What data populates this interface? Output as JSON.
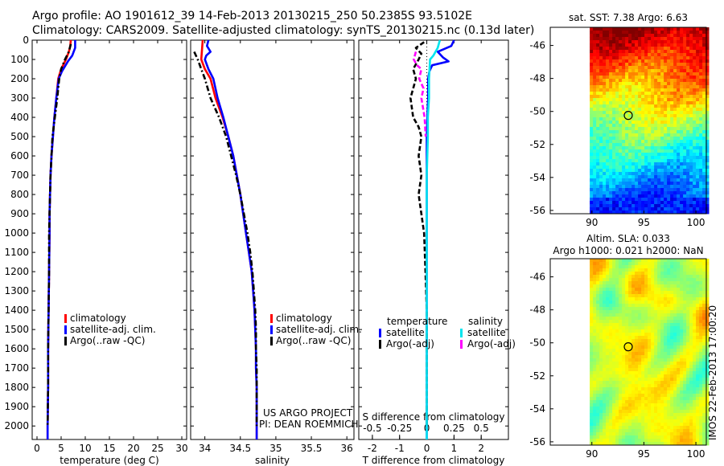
{
  "header": {
    "line1": "Argo profile: AO 1901612_39 14-Feb-2013 20130215_250 50.2385S 93.5102E",
    "line2": "Climatology: CARS2009. Satellite-adjusted climatology: synTS_20130215.nc (0.13d later)"
  },
  "chart_data": [
    {
      "type": "line",
      "id": "temperature-panel",
      "xlabel": "temperature (deg C)",
      "xlim": [
        -1,
        31
      ],
      "xticks": [
        0,
        5,
        10,
        15,
        20,
        25,
        30
      ],
      "ylim": [
        0,
        2070
      ],
      "yticks": [
        0,
        100,
        200,
        300,
        400,
        500,
        600,
        700,
        800,
        900,
        1000,
        1100,
        1200,
        1300,
        1400,
        1500,
        1600,
        1700,
        1800,
        1900,
        2000
      ],
      "legend": [
        "climatology",
        "satellite-adj. clim.",
        "Argo(..raw -QC)"
      ],
      "series": [
        {
          "name": "climatology",
          "color": "#ff0000",
          "style": "solid",
          "points": [
            [
              7.0,
              0
            ],
            [
              6.9,
              30
            ],
            [
              6.6,
              60
            ],
            [
              6.0,
              100
            ],
            [
              5.0,
              150
            ],
            [
              4.4,
              200
            ],
            [
              4.0,
              300
            ],
            [
              3.6,
              400
            ],
            [
              3.3,
              500
            ],
            [
              3.0,
              600
            ],
            [
              2.8,
              700
            ],
            [
              2.7,
              800
            ],
            [
              2.6,
              900
            ],
            [
              2.6,
              1000
            ],
            [
              2.5,
              1200
            ],
            [
              2.4,
              1400
            ],
            [
              2.3,
              1600
            ],
            [
              2.3,
              1800
            ],
            [
              2.2,
              2000
            ],
            [
              2.2,
              2070
            ]
          ]
        },
        {
          "name": "satellite-adj. clim.",
          "color": "#0000ff",
          "style": "solid",
          "points": [
            [
              7.9,
              0
            ],
            [
              7.9,
              40
            ],
            [
              7.3,
              80
            ],
            [
              6.4,
              110
            ],
            [
              5.2,
              160
            ],
            [
              4.5,
              200
            ],
            [
              4.0,
              300
            ],
            [
              3.6,
              400
            ],
            [
              3.3,
              500
            ],
            [
              3.0,
              600
            ],
            [
              2.8,
              700
            ],
            [
              2.7,
              800
            ],
            [
              2.6,
              900
            ],
            [
              2.6,
              1000
            ],
            [
              2.5,
              1200
            ],
            [
              2.4,
              1400
            ],
            [
              2.3,
              1600
            ],
            [
              2.3,
              1800
            ],
            [
              2.2,
              2000
            ],
            [
              2.2,
              2070
            ]
          ]
        },
        {
          "name": "Argo(..raw -QC)",
          "color": "#000000",
          "style": "dashdot",
          "points": [
            [
              7.0,
              20
            ],
            [
              6.6,
              60
            ],
            [
              5.8,
              100
            ],
            [
              5.0,
              150
            ],
            [
              4.6,
              200
            ],
            [
              4.2,
              300
            ],
            [
              3.7,
              400
            ],
            [
              3.2,
              500
            ],
            [
              3.0,
              600
            ],
            [
              2.8,
              700
            ],
            [
              2.7,
              800
            ],
            [
              2.6,
              900
            ],
            [
              2.5,
              1000
            ],
            [
              2.5,
              1200
            ],
            [
              2.4,
              1400
            ],
            [
              2.3,
              1600
            ],
            [
              2.3,
              1800
            ],
            [
              2.2,
              2000
            ]
          ]
        }
      ]
    },
    {
      "type": "line",
      "id": "salinity-panel",
      "xlabel": "salinity",
      "xlim": [
        33.8,
        36.1
      ],
      "xticks": [
        34,
        34.5,
        35,
        35.5,
        36
      ],
      "xticklabels": [
        "34",
        "34.5",
        "35",
        "35.5",
        "36"
      ],
      "ylim": [
        0,
        2070
      ],
      "legend": [
        "climatology",
        "satellite-adj. clim.",
        "Argo(..raw -QC)"
      ],
      "annotations": [
        "US ARGO PROJECT",
        "PI: DEAN ROEMMICH"
      ],
      "series": [
        {
          "name": "climatology",
          "color": "#ff0000",
          "style": "solid",
          "points": [
            [
              33.97,
              0
            ],
            [
              33.96,
              50
            ],
            [
              33.95,
              100
            ],
            [
              34.0,
              150
            ],
            [
              34.08,
              200
            ],
            [
              34.15,
              300
            ],
            [
              34.25,
              400
            ],
            [
              34.33,
              500
            ],
            [
              34.4,
              600
            ],
            [
              34.45,
              700
            ],
            [
              34.5,
              800
            ],
            [
              34.54,
              900
            ],
            [
              34.58,
              1000
            ],
            [
              34.62,
              1100
            ],
            [
              34.66,
              1200
            ],
            [
              34.68,
              1300
            ],
            [
              34.7,
              1400
            ],
            [
              34.71,
              1500
            ],
            [
              34.72,
              1600
            ],
            [
              34.72,
              1700
            ],
            [
              34.73,
              1800
            ],
            [
              34.73,
              1900
            ],
            [
              34.73,
              2000
            ],
            [
              34.73,
              2070
            ]
          ]
        },
        {
          "name": "satellite-adj. clim.",
          "color": "#0000ff",
          "style": "solid",
          "points": [
            [
              34.05,
              0
            ],
            [
              34.03,
              30
            ],
            [
              34.08,
              60
            ],
            [
              34.02,
              80
            ],
            [
              34.0,
              100
            ],
            [
              34.05,
              150
            ],
            [
              34.12,
              200
            ],
            [
              34.18,
              300
            ],
            [
              34.26,
              400
            ],
            [
              34.33,
              500
            ],
            [
              34.4,
              600
            ],
            [
              34.45,
              700
            ],
            [
              34.5,
              800
            ],
            [
              34.54,
              900
            ],
            [
              34.58,
              1000
            ],
            [
              34.62,
              1100
            ],
            [
              34.66,
              1200
            ],
            [
              34.68,
              1300
            ],
            [
              34.7,
              1400
            ],
            [
              34.71,
              1500
            ],
            [
              34.72,
              1600
            ],
            [
              34.72,
              1700
            ],
            [
              34.73,
              1800
            ],
            [
              34.73,
              1900
            ],
            [
              34.73,
              2000
            ],
            [
              34.73,
              2070
            ]
          ]
        },
        {
          "name": "Argo(..raw -QC)",
          "color": "#000000",
          "style": "dashdot",
          "points": [
            [
              33.85,
              60
            ],
            [
              33.9,
              100
            ],
            [
              33.95,
              150
            ],
            [
              34.0,
              200
            ],
            [
              34.08,
              300
            ],
            [
              34.2,
              400
            ],
            [
              34.3,
              500
            ],
            [
              34.37,
              600
            ],
            [
              34.44,
              700
            ],
            [
              34.5,
              800
            ],
            [
              34.55,
              900
            ],
            [
              34.6,
              1000
            ],
            [
              34.64,
              1100
            ],
            [
              34.67,
              1200
            ],
            [
              34.69,
              1300
            ],
            [
              34.71,
              1400
            ],
            [
              34.72,
              1500
            ],
            [
              34.72,
              1600
            ],
            [
              34.73,
              1700
            ],
            [
              34.73,
              1800
            ],
            [
              34.73,
              1900
            ],
            [
              34.73,
              2000
            ]
          ]
        }
      ]
    },
    {
      "type": "line",
      "id": "difference-panel",
      "xlabel": "T difference from climatology",
      "xlabel_top": "S difference from climatology",
      "xlim": [
        -2.5,
        3
      ],
      "xticks": [
        -2,
        -1,
        0,
        1,
        2
      ],
      "top_ticks": [
        -0.5,
        -0.25,
        0,
        0.25,
        0.5
      ],
      "top_ticklabels": [
        "-0.5",
        "-0.25",
        "0",
        "0.25",
        "0.5"
      ],
      "top_xlim": [
        -0.625,
        0.75
      ],
      "ylim": [
        0,
        2070
      ],
      "legend_headers": [
        "temperature",
        "salinity"
      ],
      "legend": [
        "satellite",
        "Argo(-adj)",
        "satellite",
        "Argo(-adj)"
      ],
      "series": [
        {
          "name": "temperature satellite",
          "color": "#0000ff",
          "style": "solid",
          "axis": "T",
          "points": [
            [
              1.0,
              0
            ],
            [
              0.9,
              30
            ],
            [
              0.4,
              60
            ],
            [
              0.6,
              90
            ],
            [
              0.8,
              110
            ],
            [
              0.2,
              130
            ],
            [
              0.1,
              160
            ],
            [
              0.05,
              200
            ],
            [
              0.05,
              300
            ],
            [
              0.02,
              400
            ],
            [
              0.0,
              500
            ],
            [
              0.0,
              700
            ],
            [
              0.0,
              1000
            ],
            [
              0.0,
              1500
            ],
            [
              0.0,
              2000
            ],
            [
              0.0,
              2070
            ]
          ]
        },
        {
          "name": "temperature Argo(-adj)",
          "color": "#000000",
          "style": "dashed",
          "axis": "T",
          "points": [
            [
              -0.1,
              10
            ],
            [
              -0.4,
              40
            ],
            [
              -0.2,
              70
            ],
            [
              -0.3,
              100
            ],
            [
              -0.5,
              150
            ],
            [
              -0.4,
              200
            ],
            [
              -0.6,
              300
            ],
            [
              -0.5,
              400
            ],
            [
              -0.3,
              450
            ],
            [
              -0.2,
              500
            ],
            [
              -0.3,
              600
            ],
            [
              -0.2,
              700
            ],
            [
              -0.3,
              800
            ],
            [
              -0.2,
              900
            ],
            [
              -0.1,
              1000
            ],
            [
              -0.05,
              1200
            ],
            [
              0.0,
              1400
            ],
            [
              0.0,
              1600
            ],
            [
              0.0,
              1800
            ],
            [
              0.0,
              2000
            ]
          ]
        },
        {
          "name": "salinity satellite",
          "color": "#00e5ee",
          "style": "solid",
          "axis": "S",
          "points": [
            [
              0.12,
              0
            ],
            [
              0.1,
              40
            ],
            [
              0.06,
              80
            ],
            [
              0.03,
              100
            ],
            [
              0.02,
              200
            ],
            [
              0.02,
              300
            ],
            [
              0.01,
              400
            ],
            [
              0.01,
              500
            ],
            [
              0.0,
              700
            ],
            [
              0.0,
              800
            ],
            [
              0.0,
              900
            ],
            [
              0.0,
              1000
            ],
            [
              0.0,
              1200
            ],
            [
              0.0,
              1400
            ],
            [
              0.0,
              1600
            ],
            [
              0.0,
              1800
            ],
            [
              0.0,
              2000
            ],
            [
              0.0,
              2070
            ]
          ]
        },
        {
          "name": "salinity Argo(-adj)",
          "color": "#ff00ff",
          "style": "dashed",
          "axis": "S",
          "points": [
            [
              -0.1,
              60
            ],
            [
              -0.12,
              100
            ],
            [
              -0.09,
              130
            ],
            [
              -0.05,
              150
            ],
            [
              -0.07,
              200
            ],
            [
              -0.03,
              250
            ],
            [
              -0.05,
              300
            ],
            [
              -0.02,
              400
            ],
            [
              -0.01,
              500
            ]
          ]
        }
      ]
    },
    {
      "type": "heatmap",
      "id": "sst-map",
      "title": "sat. SST: 7.38 Argo: 6.63",
      "xlim": [
        86,
        101
      ],
      "ylim": [
        -56.2,
        -44.9
      ],
      "xticks": [
        90,
        95,
        100
      ],
      "yticks": [
        -46,
        -48,
        -50,
        -52,
        -54,
        -56
      ],
      "marker": {
        "lon": 93.5,
        "lat": -50.24
      }
    },
    {
      "type": "heatmap",
      "id": "sla-map",
      "title_line1": "Altim. SLA: 0.033",
      "title_line2": "Argo h1000: 0.021 h2000: NaN",
      "xlim": [
        86,
        101
      ],
      "ylim": [
        -56.2,
        -44.9
      ],
      "xticks": [
        90,
        95,
        100
      ],
      "yticks": [
        -46,
        -48,
        -50,
        -52,
        -54,
        -56
      ],
      "marker": {
        "lon": 93.5,
        "lat": -50.24
      }
    }
  ],
  "footer": {
    "stamp": "IMOS 22-Feb-2013 17:00:20"
  }
}
